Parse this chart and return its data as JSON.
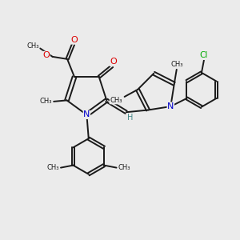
{
  "bg_color": "#ebebeb",
  "bond_color": "#1a1a1a",
  "bond_width": 1.4,
  "N_color": "#0000cc",
  "O_color": "#dd0000",
  "Cl_color": "#00aa00",
  "H_color": "#448888",
  "figsize": [
    3.0,
    3.0
  ],
  "dpi": 100,
  "xlim": [
    0,
    10
  ],
  "ylim": [
    0,
    10
  ]
}
